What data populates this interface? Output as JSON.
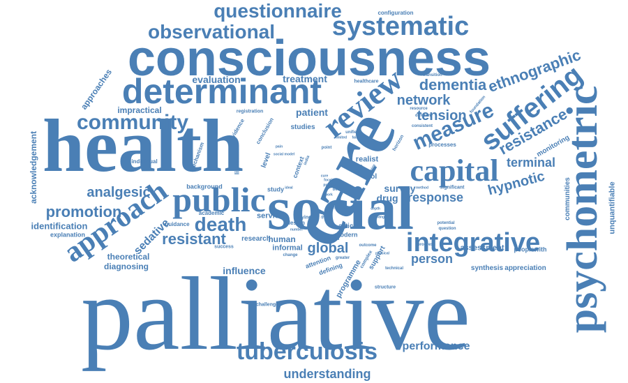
{
  "colors": {
    "word": "#4a7fb5",
    "background": "#ffffff"
  },
  "words": [
    "palliative",
    "health",
    "care",
    "social",
    "consciousness",
    "psychometric",
    "determinant",
    "review",
    "public",
    "capital",
    "approach",
    "systematic",
    "questionnaire",
    "observational",
    "suffering",
    "measure",
    "integrative",
    "community",
    "tuberculosis",
    "death",
    "resistant",
    "promotion",
    "analgesic",
    "dementia",
    "ethnographic",
    "network",
    "tension",
    "resistance",
    "terminal",
    "hypnotic",
    "response",
    "global",
    "person",
    "understanding",
    "performance",
    "influence",
    "sedative",
    "evaluation",
    "treatment",
    "patient",
    "impractical",
    "identification",
    "acknowledgement",
    "approaches",
    "theoretical",
    "diagnosing",
    "explanation",
    "survey",
    "drug",
    "human",
    "informal",
    "research",
    "service",
    "article",
    "modern",
    "attention",
    "defining",
    "programme",
    "support",
    "assessment",
    "synthesis",
    "appreciation",
    "communities",
    "unquantifiable",
    "monitoring",
    "peoplewith",
    "realist",
    "tool",
    "life",
    "study",
    "background",
    "academic",
    "guidance",
    "success",
    "literature",
    "context",
    "level",
    "mechanism",
    "evidence",
    "conclusion",
    "registration",
    "individual",
    "studies",
    "structure",
    "challenge",
    "configuration",
    "healthcare",
    "transition",
    "foundation",
    "resource",
    "different",
    "consistent",
    "horizon",
    "processes",
    "significant",
    "potential",
    "question",
    "progress",
    "technical",
    "complex",
    "outcome",
    "design",
    "dying",
    "better",
    "political",
    "change",
    "method",
    "physical",
    "depth",
    "range",
    "point",
    "unified",
    "failure",
    "limited",
    "india",
    "cure",
    "focal",
    "practice",
    "ideal",
    "being",
    "work",
    "adult",
    "illness",
    "number",
    "greater",
    "social model",
    "pain"
  ]
}
